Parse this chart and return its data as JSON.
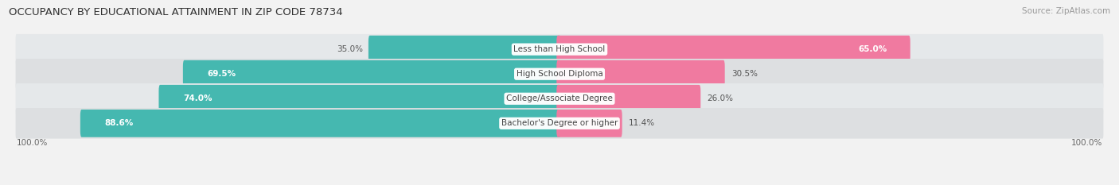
{
  "title": "OCCUPANCY BY EDUCATIONAL ATTAINMENT IN ZIP CODE 78734",
  "source": "Source: ZipAtlas.com",
  "categories": [
    "Less than High School",
    "High School Diploma",
    "College/Associate Degree",
    "Bachelor's Degree or higher"
  ],
  "owner_pct": [
    35.0,
    69.5,
    74.0,
    88.6
  ],
  "renter_pct": [
    65.0,
    30.5,
    26.0,
    11.4
  ],
  "owner_color": "#45b8b0",
  "renter_color": "#f07aa0",
  "bg_color": "#f2f2f2",
  "row_bg_color": "#e8eaeb",
  "row_bg_color2": "#dde0e2",
  "title_fontsize": 9.5,
  "label_fontsize": 7.5,
  "pct_fontsize": 7.5,
  "tick_fontsize": 7.5,
  "legend_fontsize": 8,
  "source_fontsize": 7.5,
  "x_axis_labels": [
    "100.0%",
    "100.0%"
  ]
}
